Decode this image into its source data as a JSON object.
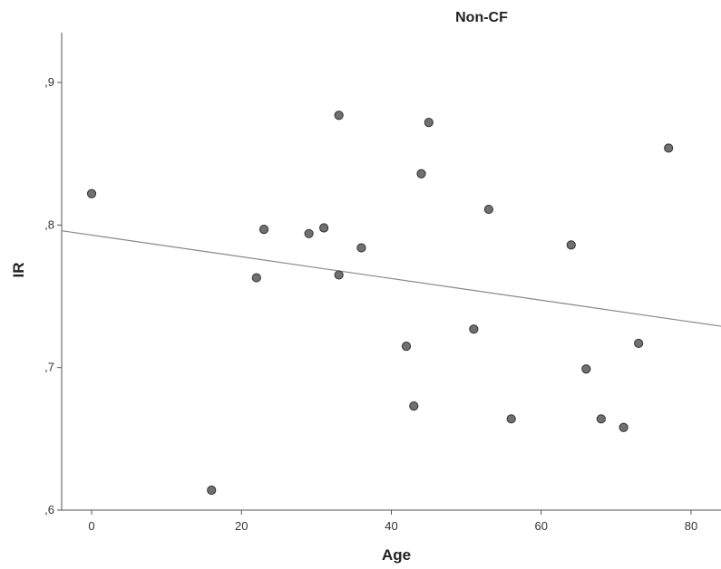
{
  "chart_data": {
    "type": "scatter",
    "title": "Non-CF",
    "xlabel": "Age",
    "ylabel": "IR",
    "xlim": [
      -4,
      84
    ],
    "ylim": [
      0.6,
      0.935
    ],
    "xticks": [
      0,
      20,
      40,
      60,
      80
    ],
    "xtick_labels": [
      "0",
      "20",
      "40",
      "60",
      "80"
    ],
    "yticks": [
      0.6,
      0.7,
      0.8,
      0.9
    ],
    "ytick_labels": [
      ",6",
      ",7",
      ",8",
      ",9"
    ],
    "grid": false,
    "points": [
      {
        "x": 0,
        "y": 0.822
      },
      {
        "x": 16,
        "y": 0.614
      },
      {
        "x": 22,
        "y": 0.763
      },
      {
        "x": 23,
        "y": 0.797
      },
      {
        "x": 29,
        "y": 0.794
      },
      {
        "x": 31,
        "y": 0.798
      },
      {
        "x": 33,
        "y": 0.877
      },
      {
        "x": 33,
        "y": 0.765
      },
      {
        "x": 36,
        "y": 0.784
      },
      {
        "x": 42,
        "y": 0.715
      },
      {
        "x": 43,
        "y": 0.673
      },
      {
        "x": 44,
        "y": 0.836
      },
      {
        "x": 45,
        "y": 0.872
      },
      {
        "x": 51,
        "y": 0.727
      },
      {
        "x": 53,
        "y": 0.811
      },
      {
        "x": 56,
        "y": 0.664
      },
      {
        "x": 64,
        "y": 0.786
      },
      {
        "x": 66,
        "y": 0.699
      },
      {
        "x": 68,
        "y": 0.664
      },
      {
        "x": 71,
        "y": 0.658
      },
      {
        "x": 73,
        "y": 0.717
      },
      {
        "x": 77,
        "y": 0.854
      }
    ],
    "fit_line": {
      "x": [
        -4,
        84
      ],
      "y": [
        0.796,
        0.729
      ]
    },
    "colors": {
      "marker_fill": "#707070",
      "marker_stroke": "#333333",
      "line": "#888888",
      "axis": "#555555"
    }
  }
}
